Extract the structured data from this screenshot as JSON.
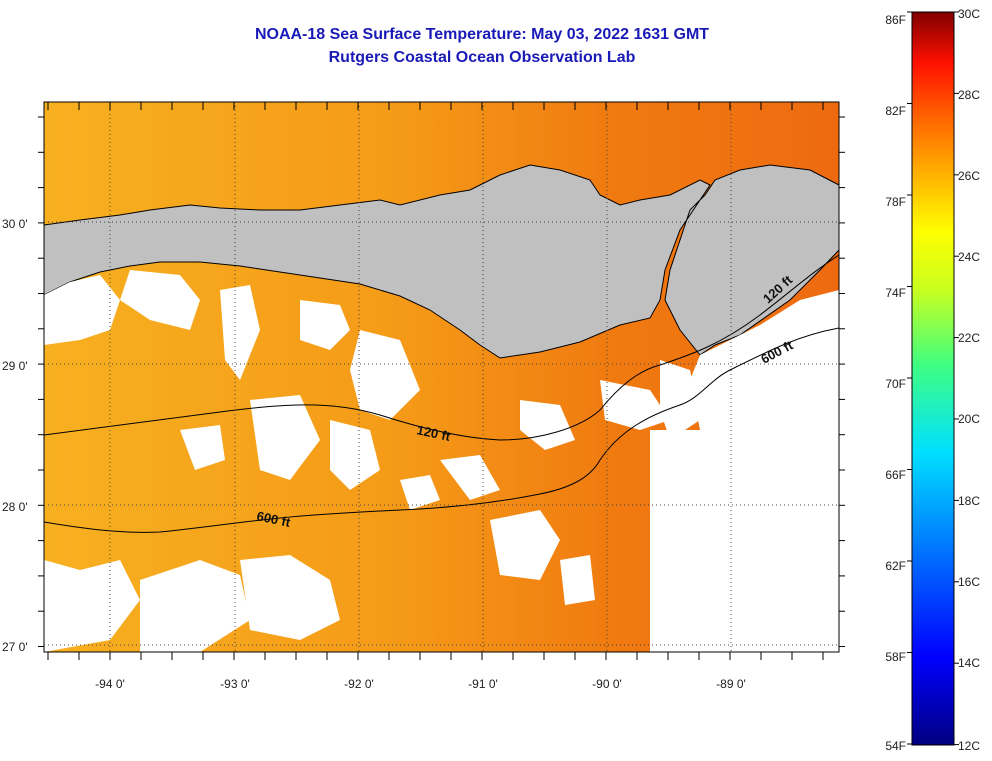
{
  "title": {
    "line1": "NOAA-18 Sea Surface Temperature:  May 03, 2022 1631 GMT",
    "line2": "Rutgers Coastal Ocean Observation Lab"
  },
  "map": {
    "longitude_labels": [
      "-94 0'",
      "-93 0'",
      "-92 0'",
      "-91 0'",
      "-90 0'",
      "-89 0'"
    ],
    "latitude_labels": [
      "30 0'",
      "29 0'",
      "28 0'",
      "27 0'"
    ],
    "contour_labels": [
      "120 ft",
      "120 ft",
      "600 ft",
      "600 ft"
    ],
    "colors": {
      "land": "#c0c0c0",
      "cloud": "#ffffff",
      "sst_warm": "#f07a10",
      "sst_mid": "#f59a18",
      "sst_light": "#f7b020"
    }
  },
  "colorbar": {
    "fahrenheit_labels": [
      "86F",
      "82F",
      "78F",
      "74F",
      "70F",
      "66F",
      "62F",
      "58F",
      "54F"
    ],
    "celsius_labels": [
      "30C",
      "28C",
      "26C",
      "24C",
      "22C",
      "20C",
      "18C",
      "16C",
      "14C",
      "12C"
    ]
  }
}
